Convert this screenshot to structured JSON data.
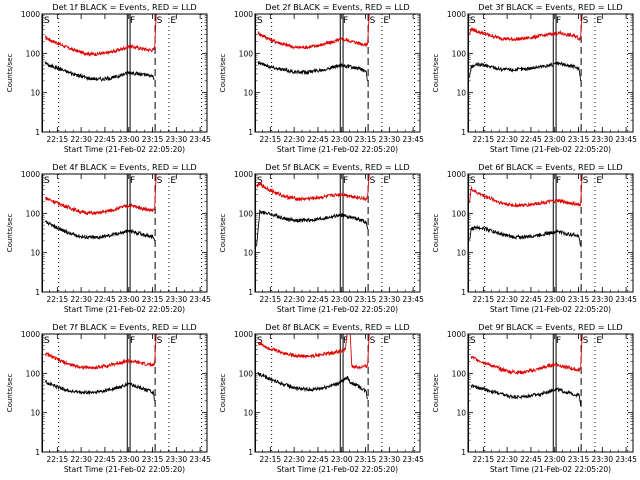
{
  "figure": {
    "background": "#ffffff"
  },
  "chart_data": {
    "type": "line",
    "common": {
      "title_suffix": "BLACK = Events, RED = LLD",
      "ylabel": "Counts/sec",
      "xlabel": "Start Time (21-Feb-02 22:05:20)",
      "x_tick_labels": [
        "22:15",
        "22:30",
        "22:45",
        "23:00",
        "23:15",
        "23:30",
        "23:45"
      ],
      "x_tick_minutes": [
        9.667,
        24.667,
        39.667,
        54.667,
        69.667,
        84.667,
        99.667
      ],
      "x_range_minutes": [
        0,
        104
      ],
      "y_scale": "log",
      "ylim": [
        1,
        1000
      ],
      "y_tick_labels": [
        "1",
        "10",
        "100",
        "1000"
      ],
      "series_colors": {
        "events": "#000000",
        "lld": "#e00000"
      },
      "markers": [
        {
          "label": "S",
          "t": 0.3,
          "style": "solid"
        },
        {
          "label": "",
          "t": 10.5,
          "style": "dotted"
        },
        {
          "label": "F",
          "t": 54.5,
          "style": "solid-double"
        },
        {
          "label": "S",
          "t": 71.3,
          "style": "dashed"
        },
        {
          "label": "E",
          "t": 80.0,
          "style": "dotted"
        },
        {
          "label": "",
          "t": 100.6,
          "style": "dotted"
        }
      ]
    },
    "panels": [
      {
        "title": "Det 1f",
        "events": [
          [
            2,
            60
          ],
          [
            4,
            50
          ],
          [
            8,
            45
          ],
          [
            15,
            35
          ],
          [
            22,
            28
          ],
          [
            30,
            23
          ],
          [
            38,
            22
          ],
          [
            45,
            24
          ],
          [
            50,
            28
          ],
          [
            55,
            33
          ],
          [
            60,
            30
          ],
          [
            66,
            28
          ],
          [
            70,
            26
          ],
          [
            71,
            22
          ]
        ],
        "lld": [
          [
            2,
            260
          ],
          [
            5,
            220
          ],
          [
            10,
            180
          ],
          [
            18,
            130
          ],
          [
            25,
            105
          ],
          [
            32,
            95
          ],
          [
            40,
            100
          ],
          [
            48,
            120
          ],
          [
            55,
            150
          ],
          [
            60,
            140
          ],
          [
            66,
            125
          ],
          [
            70,
            120
          ],
          [
            71,
            130
          ],
          [
            72,
            1000
          ]
        ]
      },
      {
        "title": "Det 2f",
        "events": [
          [
            2,
            60
          ],
          [
            4,
            55
          ],
          [
            10,
            45
          ],
          [
            18,
            38
          ],
          [
            26,
            33
          ],
          [
            34,
            34
          ],
          [
            42,
            38
          ],
          [
            50,
            45
          ],
          [
            55,
            50
          ],
          [
            60,
            45
          ],
          [
            66,
            40
          ],
          [
            70,
            35
          ],
          [
            71,
            20
          ]
        ],
        "lld": [
          [
            2,
            330
          ],
          [
            5,
            280
          ],
          [
            10,
            220
          ],
          [
            18,
            170
          ],
          [
            26,
            140
          ],
          [
            34,
            145
          ],
          [
            42,
            165
          ],
          [
            50,
            200
          ],
          [
            55,
            230
          ],
          [
            60,
            205
          ],
          [
            66,
            180
          ],
          [
            70,
            165
          ],
          [
            71,
            180
          ],
          [
            72,
            1000
          ]
        ]
      },
      {
        "title": "Det 3f",
        "events": [
          [
            1,
            25
          ],
          [
            2,
            45
          ],
          [
            6,
            52
          ],
          [
            12,
            48
          ],
          [
            20,
            40
          ],
          [
            28,
            38
          ],
          [
            36,
            40
          ],
          [
            44,
            45
          ],
          [
            52,
            50
          ],
          [
            57,
            55
          ],
          [
            62,
            50
          ],
          [
            68,
            45
          ],
          [
            70,
            40
          ],
          [
            71,
            20
          ]
        ],
        "lld": [
          [
            1,
            300
          ],
          [
            2,
            420
          ],
          [
            6,
            360
          ],
          [
            12,
            300
          ],
          [
            20,
            245
          ],
          [
            28,
            225
          ],
          [
            36,
            240
          ],
          [
            44,
            270
          ],
          [
            52,
            305
          ],
          [
            57,
            330
          ],
          [
            62,
            300
          ],
          [
            68,
            270
          ],
          [
            70,
            240
          ],
          [
            71,
            250
          ],
          [
            72,
            1000
          ]
        ]
      },
      {
        "title": "Det 4f",
        "events": [
          [
            2,
            60
          ],
          [
            4,
            55
          ],
          [
            10,
            42
          ],
          [
            18,
            30
          ],
          [
            26,
            25
          ],
          [
            34,
            24
          ],
          [
            42,
            27
          ],
          [
            50,
            32
          ],
          [
            55,
            36
          ],
          [
            60,
            32
          ],
          [
            66,
            28
          ],
          [
            70,
            25
          ],
          [
            71,
            20
          ]
        ],
        "lld": [
          [
            2,
            250
          ],
          [
            5,
            220
          ],
          [
            10,
            180
          ],
          [
            18,
            135
          ],
          [
            26,
            105
          ],
          [
            34,
            100
          ],
          [
            42,
            115
          ],
          [
            50,
            140
          ],
          [
            55,
            160
          ],
          [
            60,
            145
          ],
          [
            66,
            125
          ],
          [
            70,
            115
          ],
          [
            71,
            130
          ],
          [
            72,
            1000
          ]
        ]
      },
      {
        "title": "Det 5f",
        "events": [
          [
            1,
            15
          ],
          [
            3,
            110
          ],
          [
            8,
            100
          ],
          [
            14,
            85
          ],
          [
            20,
            72
          ],
          [
            28,
            65
          ],
          [
            36,
            68
          ],
          [
            44,
            75
          ],
          [
            50,
            85
          ],
          [
            55,
            90
          ],
          [
            60,
            80
          ],
          [
            66,
            70
          ],
          [
            70,
            60
          ],
          [
            71,
            40
          ]
        ],
        "lld": [
          [
            1,
            500
          ],
          [
            3,
            550
          ],
          [
            8,
            420
          ],
          [
            14,
            320
          ],
          [
            20,
            260
          ],
          [
            28,
            230
          ],
          [
            36,
            240
          ],
          [
            44,
            265
          ],
          [
            50,
            290
          ],
          [
            55,
            305
          ],
          [
            60,
            280
          ],
          [
            66,
            250
          ],
          [
            70,
            230
          ],
          [
            71,
            260
          ],
          [
            72,
            1000
          ]
        ]
      },
      {
        "title": "Det 6f",
        "events": [
          [
            1,
            20
          ],
          [
            2,
            40
          ],
          [
            6,
            45
          ],
          [
            12,
            40
          ],
          [
            20,
            30
          ],
          [
            28,
            25
          ],
          [
            36,
            25
          ],
          [
            44,
            28
          ],
          [
            52,
            32
          ],
          [
            57,
            35
          ],
          [
            62,
            30
          ],
          [
            68,
            28
          ],
          [
            70,
            25
          ],
          [
            71,
            15
          ]
        ],
        "lld": [
          [
            1,
            200
          ],
          [
            2,
            420
          ],
          [
            6,
            330
          ],
          [
            12,
            260
          ],
          [
            20,
            190
          ],
          [
            28,
            160
          ],
          [
            36,
            160
          ],
          [
            44,
            180
          ],
          [
            52,
            200
          ],
          [
            57,
            210
          ],
          [
            62,
            190
          ],
          [
            68,
            170
          ],
          [
            70,
            160
          ],
          [
            71,
            170
          ],
          [
            72,
            1000
          ]
        ]
      },
      {
        "title": "Det 7f",
        "events": [
          [
            2,
            65
          ],
          [
            4,
            55
          ],
          [
            10,
            45
          ],
          [
            18,
            35
          ],
          [
            26,
            32
          ],
          [
            34,
            33
          ],
          [
            42,
            38
          ],
          [
            50,
            45
          ],
          [
            55,
            55
          ],
          [
            60,
            45
          ],
          [
            66,
            38
          ],
          [
            70,
            33
          ],
          [
            71,
            20
          ]
        ],
        "lld": [
          [
            2,
            320
          ],
          [
            5,
            280
          ],
          [
            10,
            220
          ],
          [
            18,
            165
          ],
          [
            26,
            140
          ],
          [
            34,
            140
          ],
          [
            42,
            160
          ],
          [
            50,
            190
          ],
          [
            55,
            210
          ],
          [
            60,
            190
          ],
          [
            66,
            170
          ],
          [
            70,
            160
          ],
          [
            71,
            180
          ],
          [
            72,
            1000
          ]
        ]
      },
      {
        "title": "Det 8f",
        "events": [
          [
            2,
            100
          ],
          [
            4,
            90
          ],
          [
            10,
            70
          ],
          [
            18,
            52
          ],
          [
            26,
            42
          ],
          [
            34,
            38
          ],
          [
            42,
            42
          ],
          [
            50,
            52
          ],
          [
            55,
            62
          ],
          [
            58,
            80
          ],
          [
            60,
            60
          ],
          [
            66,
            45
          ],
          [
            70,
            35
          ],
          [
            71,
            22
          ]
        ],
        "lld": [
          [
            2,
            600
          ],
          [
            5,
            520
          ],
          [
            10,
            420
          ],
          [
            18,
            330
          ],
          [
            26,
            280
          ],
          [
            34,
            270
          ],
          [
            42,
            300
          ],
          [
            50,
            340
          ],
          [
            55,
            380
          ],
          [
            57,
            400
          ],
          [
            58,
            1000
          ],
          [
            60,
            1000
          ],
          [
            61,
            150
          ],
          [
            66,
            140
          ],
          [
            70,
            150
          ],
          [
            71,
            160
          ],
          [
            72,
            1000
          ]
        ]
      },
      {
        "title": "Det 9f",
        "events": [
          [
            2,
            50
          ],
          [
            4,
            45
          ],
          [
            10,
            40
          ],
          [
            18,
            32
          ],
          [
            26,
            26
          ],
          [
            34,
            25
          ],
          [
            42,
            28
          ],
          [
            50,
            33
          ],
          [
            55,
            40
          ],
          [
            60,
            35
          ],
          [
            66,
            30
          ],
          [
            70,
            28
          ],
          [
            71,
            15
          ]
        ],
        "lld": [
          [
            2,
            260
          ],
          [
            5,
            230
          ],
          [
            10,
            190
          ],
          [
            18,
            140
          ],
          [
            26,
            110
          ],
          [
            34,
            105
          ],
          [
            42,
            120
          ],
          [
            50,
            150
          ],
          [
            55,
            170
          ],
          [
            60,
            150
          ],
          [
            66,
            130
          ],
          [
            70,
            120
          ],
          [
            71,
            130
          ],
          [
            72,
            1000
          ]
        ]
      }
    ]
  }
}
